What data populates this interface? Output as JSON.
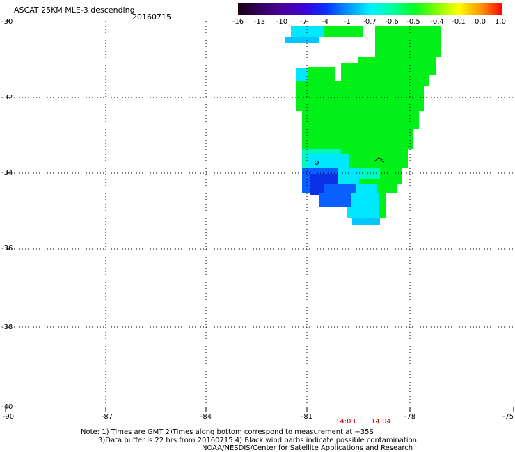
{
  "header": {
    "title": "ASCAT 25KM MLE-3 descending",
    "date": "20160715"
  },
  "colorbar": {
    "labels": [
      "-16",
      "-13",
      "-10",
      "-7",
      "-4",
      "-1",
      "-0.7",
      "-0.6",
      "-0.5",
      "-0.4",
      "-0.1",
      "0.0",
      "1.0"
    ],
    "colors": [
      "#1a0010",
      "#33005f",
      "#4b0099",
      "#3c00d8",
      "#0a30ff",
      "#0096ff",
      "#00f0ff",
      "#00ffa0",
      "#00ff20",
      "#7fff00",
      "#ffff00",
      "#ff9900",
      "#ff0000"
    ]
  },
  "axes": {
    "lat_labels": [
      "-30",
      "-32",
      "-34",
      "-36",
      "-38",
      "-40"
    ],
    "lon_labels": [
      "-90",
      "-87",
      "-84",
      "-81",
      "-78",
      "-75"
    ],
    "lat_range": [
      -40,
      -30
    ],
    "lon_range": [
      -90,
      -75
    ],
    "grid": "dotted"
  },
  "times": [
    "14:03",
    "14:04"
  ],
  "notes": {
    "line1": "Note: 1) Times are GMT 2)Times along bottom correspond to measurement at −35S",
    "line2": "3)Data buffer is 22 hrs from 20160715 4) Black wind barbs indicate possible contamination",
    "line3": "NOAA/NESDIS/Center for Satellite Applications and Research"
  }
}
